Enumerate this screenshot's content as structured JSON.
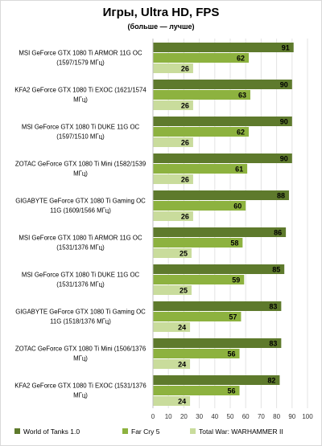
{
  "chart_data": {
    "type": "bar",
    "orientation": "horizontal",
    "title": "Игры, Ultra HD, FPS",
    "subtitle": "(больше — лучше)",
    "xlim": [
      0,
      100
    ],
    "xticks": [
      0,
      10,
      20,
      30,
      40,
      50,
      60,
      70,
      80,
      90,
      100
    ],
    "grid": true,
    "legend_position": "bottom",
    "categories": [
      "MSI GeForce GTX 1080 Ti ARMOR 11G OC (1597/1579 МГц)",
      "KFA2 GeForce GTX 1080 Ti EXOC (1621/1574 МГц)",
      "MSI GeForce GTX 1080 Ti DUKE 11G OC (1597/1510 МГц)",
      "ZOTAC GeForce GTX 1080 Ti Mini (1582/1539 МГц)",
      "GIGABYTE GeForce GTX 1080 Ti Gaming OC 11G (1609/1566 МГц)",
      "MSI GeForce GTX 1080 Ti ARMOR 11G OC (1531/1376 МГц)",
      "MSI GeForce GTX 1080 Ti DUKE 11G OC (1531/1376 МГц)",
      "GIGABYTE GeForce GTX 1080 Ti Gaming OC 11G (1518/1376 МГц)",
      "ZOTAC GeForce GTX 1080 Ti Mini (1506/1376 МГц)",
      "KFA2 GeForce GTX 1080 Ti EXOC (1531/1376 МГц)"
    ],
    "category_lines": [
      [
        "MSI GeForce GTX 1080  Ti ARMOR 11G  OC",
        "(1597/1579  МГц)"
      ],
      [
        "KFA2 GeForce GTX 1080 Ti EXOC (1621/1574",
        "МГц)"
      ],
      [
        "MSI GeForce GTX 1080  Ti DUKE 11G OC",
        "(1597/1510  МГц)"
      ],
      [
        "ZOTAC GeForce GTX 1080  Ti Mini (1582/1539",
        "МГц)"
      ],
      [
        "GIGABYTE GeForce GTX 1080  Ti Gaming OC",
        "11G (1609/1566  МГц)"
      ],
      [
        "MSI GeForce GTX 1080  Ti ARMOR 11G  OC",
        "(1531/1376  МГц)"
      ],
      [
        "MSI GeForce GTX 1080  Ti DUKE 11G OC",
        "(1531/1376  МГц)"
      ],
      [
        "GIGABYTE GeForce GTX 1080  Ti Gaming OC",
        "11G (1518/1376  МГц)"
      ],
      [
        "ZOTAC GeForce GTX 1080  Ti Mini (1506/1376",
        "МГц)"
      ],
      [
        "KFA2 GeForce GTX 1080  Ti EXOC (1531/1376",
        "МГц)"
      ]
    ],
    "series": [
      {
        "name": "World of Tanks 1.0",
        "color": "#5e7a2c",
        "values": [
          91,
          90,
          90,
          90,
          88,
          86,
          85,
          83,
          83,
          82
        ]
      },
      {
        "name": "Far Cry 5",
        "color": "#8db23f",
        "values": [
          62,
          63,
          62,
          61,
          60,
          58,
          59,
          57,
          56,
          56
        ]
      },
      {
        "name": "Total War: WARHAMMER II",
        "color": "#c9dc9c",
        "values": [
          26,
          26,
          26,
          26,
          26,
          25,
          25,
          24,
          24,
          24
        ]
      }
    ]
  }
}
